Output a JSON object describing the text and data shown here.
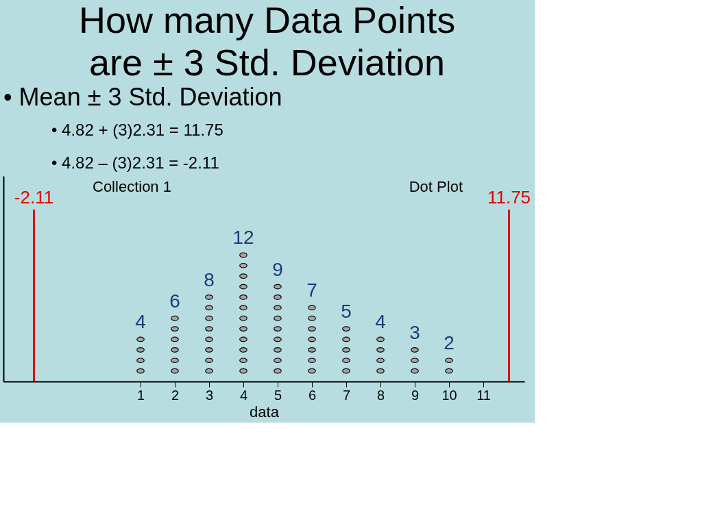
{
  "chart_data": {
    "type": "scatter",
    "title": "How many Data Points are ± 3 Std. Deviation",
    "xlabel": "data",
    "tick_labels": "x",
    "x": [
      1,
      1,
      1,
      1,
      2,
      2,
      2,
      2,
      2,
      2,
      3,
      3,
      3,
      3,
      3,
      3,
      3,
      3,
      4,
      4,
      4,
      4,
      4,
      4,
      4,
      4,
      4,
      4,
      4,
      4,
      5,
      5,
      5,
      5,
      5,
      5,
      5,
      5,
      5,
      6,
      6,
      6,
      6,
      6,
      6,
      6,
      7,
      7,
      7,
      7,
      7,
      8,
      8,
      8,
      8,
      9,
      9,
      9,
      10,
      10
    ],
    "values": [
      1,
      2,
      3,
      4,
      1,
      2,
      3,
      4,
      5,
      6,
      1,
      2,
      3,
      4,
      5,
      6,
      7,
      8,
      1,
      2,
      3,
      4,
      5,
      6,
      7,
      8,
      9,
      10,
      11,
      12,
      1,
      2,
      3,
      4,
      5,
      6,
      7,
      8,
      9,
      1,
      2,
      3,
      4,
      5,
      6,
      7,
      1,
      2,
      3,
      4,
      5,
      1,
      2,
      3,
      4,
      1,
      2,
      3,
      1,
      2
    ],
    "value_labels": [
      null,
      null,
      null,
      "4",
      null,
      null,
      null,
      null,
      null,
      "6",
      null,
      null,
      null,
      null,
      null,
      null,
      null,
      "8",
      null,
      null,
      null,
      null,
      null,
      null,
      null,
      null,
      null,
      null,
      null,
      "12",
      null,
      null,
      null,
      null,
      null,
      null,
      null,
      null,
      "9",
      null,
      null,
      null,
      null,
      null,
      null,
      "7",
      null,
      null,
      null,
      null,
      "5",
      null,
      null,
      null,
      "4",
      null,
      null,
      "3",
      null,
      "2"
    ],
    "color": "#a6a6a6",
    "marker": "circle",
    "xlim": [
      -3,
      12.2
    ],
    "xticks": [
      1,
      2,
      3,
      4,
      5,
      6,
      7,
      8,
      9,
      10,
      11
    ],
    "ref_lines": [
      {
        "axis": "x",
        "value": -2.11,
        "label": "-2.11",
        "color": "#e00000"
      },
      {
        "axis": "x",
        "value": 11.75,
        "label": "11.75",
        "color": "#e00000"
      }
    ],
    "annotations": [
      "• Mean ± 3 Std. Deviation",
      "• 4.82 + (3)2.31 = 11.75",
      "• 4.82 – (3)2.31 = -2.11",
      "Collection 1",
      "Dot Plot"
    ]
  }
}
